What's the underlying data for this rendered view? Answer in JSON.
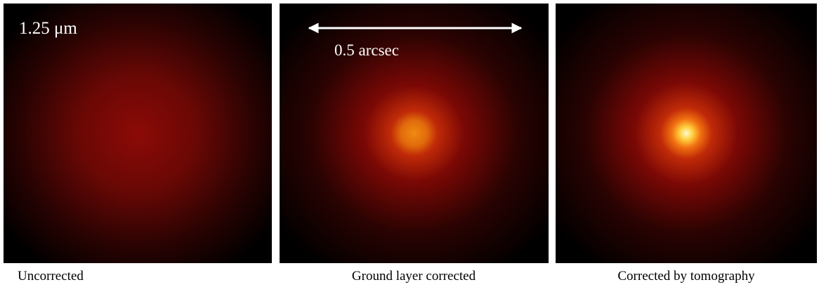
{
  "panels": [
    {
      "label": "1.25 μm",
      "caption": "Uncorrected"
    },
    {
      "annotation": "0.5 arcsec",
      "caption": "Ground layer corrected"
    },
    {
      "caption": "Corrected by tomography"
    }
  ]
}
